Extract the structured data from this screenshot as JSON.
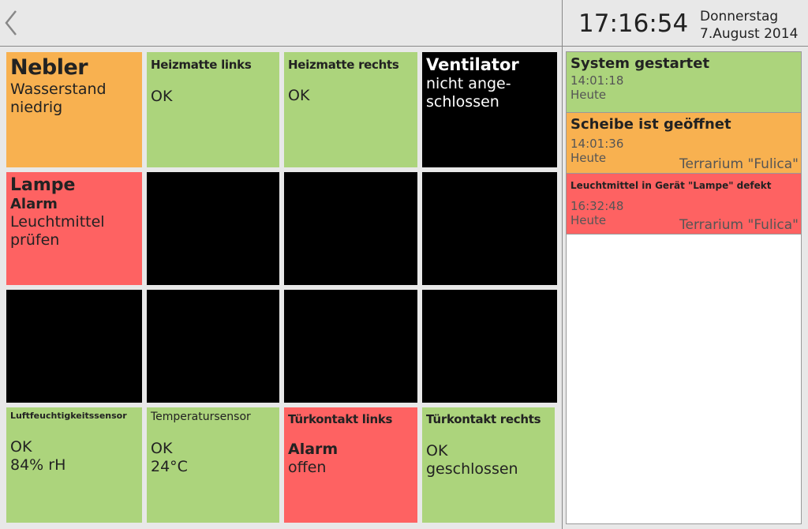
{
  "header": {
    "time": "17:16:54",
    "weekday": "Donnerstag",
    "date": "7.August 2014",
    "back_icon": "chevron-left-icon"
  },
  "colors": {
    "ok": "#acd47c",
    "warning": "#f8b150",
    "alarm": "#fe6262",
    "inactive": "#000000"
  },
  "tiles": [
    {
      "title": "Nebler",
      "lines": [
        "Wasserstand",
        "niedrig"
      ],
      "state": "warning"
    },
    {
      "title": "Heizmatte links",
      "lines": [
        "OK"
      ],
      "state": "ok"
    },
    {
      "title": "Heizmatte rechts",
      "lines": [
        "OK"
      ],
      "state": "ok"
    },
    {
      "title": "Ventilator",
      "lines": [
        "nicht ange-",
        "schlossen"
      ],
      "state": "inactive"
    },
    {
      "title": "Lampe",
      "alarm": "Alarm",
      "lines": [
        "Leuchtmittel",
        "prüfen"
      ],
      "state": "alarm"
    },
    {
      "title": "Luftfeuchtigkeitssensor",
      "lines": [
        "OK",
        "84% rH"
      ],
      "state": "ok"
    },
    {
      "title": "Temperatursensor",
      "lines": [
        "OK",
        "24°C"
      ],
      "state": "ok"
    },
    {
      "title": "Türkontakt links",
      "alarm": "Alarm",
      "lines": [
        "offen"
      ],
      "state": "alarm"
    },
    {
      "title": "Türkontakt rechts",
      "lines": [
        "OK",
        "geschlossen"
      ],
      "state": "ok"
    }
  ],
  "events": [
    {
      "title": "System gestartet",
      "time": "14:01:18",
      "day": "Heute",
      "state": "ok"
    },
    {
      "title": "Scheibe ist geöffnet",
      "time": "14:01:36",
      "day": "Heute",
      "location": "Terrarium \"Fulica\"",
      "state": "warning"
    },
    {
      "title": "Leuchtmittel in Gerät \"Lampe\" defekt",
      "time": "16:32:48",
      "day": "Heute",
      "location": "Terrarium \"Fulica\"",
      "state": "alarm"
    }
  ]
}
